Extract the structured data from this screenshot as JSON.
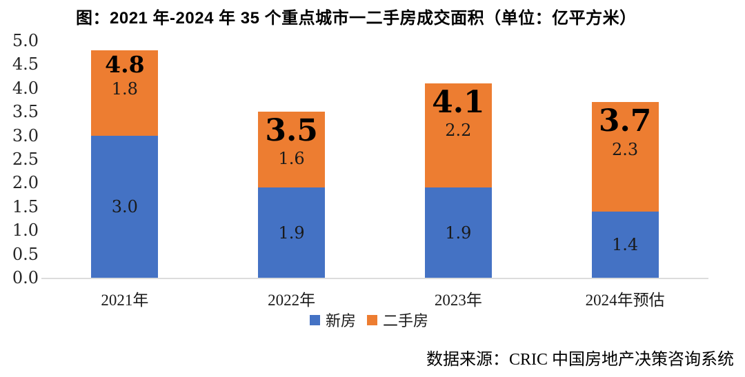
{
  "title": "图：2021 年-2024 年 35 个重点城市一二手房成交面积（单位：亿平方米）",
  "source": "数据来源：CRIC 中国房地产决策咨询系统",
  "colors": {
    "new_home_blue": "#4472C4",
    "second_hand_orange": "#ED7D31",
    "axis_line": "#dcdcdc",
    "label_text": "#1a1a1a"
  },
  "chart_data": {
    "type": "bar",
    "stacked": true,
    "title": "图：2021 年-2024 年 35 个重点城市一二手房成交面积（单位：亿平方米）",
    "categories": [
      "2021年",
      "2022年",
      "2023年",
      "2024年预估"
    ],
    "series": [
      {
        "name": "新房",
        "color": "#4472C4",
        "values": [
          3.0,
          1.9,
          1.9,
          1.4
        ],
        "labels": [
          "3.0",
          "1.9",
          "1.9",
          "1.4"
        ]
      },
      {
        "name": "二手房",
        "color": "#ED7D31",
        "values": [
          1.8,
          1.6,
          2.2,
          2.3
        ],
        "labels": [
          "1.8",
          "1.6",
          "2.2",
          "2.3"
        ]
      }
    ],
    "totals": [
      4.8,
      3.5,
      4.1,
      3.7
    ],
    "total_labels": [
      "4.8",
      "3.5",
      "4.1",
      "3.7"
    ],
    "total_label_large": [
      false,
      true,
      true,
      true
    ],
    "ylim": [
      0,
      5
    ],
    "ytick_labels": [
      "0.0",
      "0.5",
      "1.0",
      "1.5",
      "2.0",
      "2.5",
      "3.0",
      "3.5",
      "4.0",
      "4.5",
      "5.0"
    ],
    "grid": false,
    "legend_position": "bottom",
    "unit": "亿平方米"
  }
}
